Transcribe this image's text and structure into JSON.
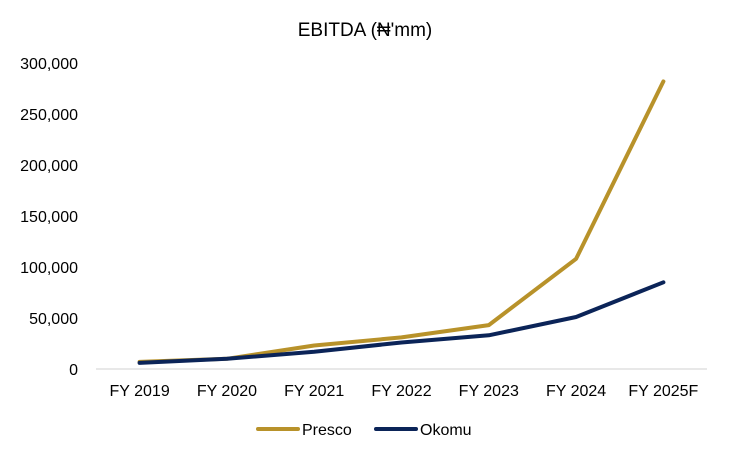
{
  "chart_data": {
    "type": "line",
    "title": "EBITDA (₦'mm)",
    "xlabel": "",
    "ylabel": "",
    "categories": [
      "FY 2019",
      "FY 2020",
      "FY 2021",
      "FY 2022",
      "FY 2023",
      "FY 2024",
      "FY 2025F"
    ],
    "ylim": [
      0,
      300000
    ],
    "yticks": [
      0,
      50000,
      100000,
      150000,
      200000,
      250000,
      300000
    ],
    "ytick_labels": [
      "0",
      "50,000",
      "100,000",
      "150,000",
      "200,000",
      "250,000",
      "300,000"
    ],
    "grid": false,
    "legend_position": "bottom",
    "series": [
      {
        "name": "Presco",
        "color": "#B8922A",
        "values": [
          7000,
          10000,
          23000,
          31000,
          43000,
          108000,
          282000
        ]
      },
      {
        "name": "Okomu",
        "color": "#0B2458",
        "values": [
          6000,
          10000,
          17000,
          26000,
          33000,
          51000,
          85000
        ]
      }
    ]
  }
}
